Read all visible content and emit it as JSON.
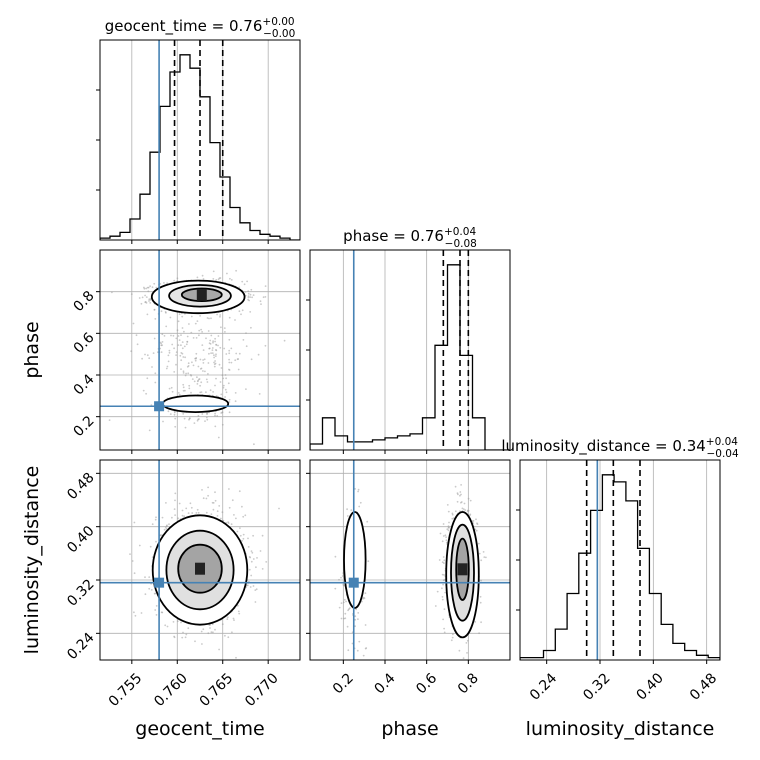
{
  "chart_data": {
    "type": "corner",
    "parameters": [
      "geocent_time",
      "phase",
      "luminosity_distance"
    ],
    "titles": [
      {
        "name": "geocent_time",
        "eq": " = 0.76",
        "plus": "+0.00",
        "minus": "−0.00"
      },
      {
        "name": "phase",
        "eq": " = 0.76",
        "plus": "+0.04",
        "minus": "−0.08"
      },
      {
        "name": "luminosity_distance",
        "eq": " = 0.34",
        "plus": "+0.04",
        "minus": "−0.04"
      }
    ],
    "ranges": {
      "geocent_time": [
        0.7515,
        0.7735
      ],
      "phase": [
        0.04,
        1.0
      ],
      "luminosity_distance": [
        0.2,
        0.5
      ]
    },
    "ticks": {
      "geocent_time": {
        "values": [
          0.755,
          0.76,
          0.765,
          0.77
        ],
        "labels": [
          "0.755",
          "0.760",
          "0.765",
          "0.770"
        ]
      },
      "phase": {
        "values": [
          0.2,
          0.4,
          0.6,
          0.8
        ],
        "labels": [
          "0.2",
          "0.4",
          "0.6",
          "0.8"
        ]
      },
      "luminosity_distance": {
        "values": [
          0.24,
          0.32,
          0.4,
          0.48
        ],
        "labels": [
          "0.24",
          "0.32",
          "0.40",
          "0.48"
        ]
      }
    },
    "truths": {
      "geocent_time": 0.758,
      "phase": 0.25,
      "luminosity_distance": 0.316
    },
    "quantiles": {
      "geocent_time": [
        0.7597,
        0.7625,
        0.765
      ],
      "phase": [
        0.68,
        0.76,
        0.8
      ],
      "luminosity_distance": [
        0.3,
        0.34,
        0.38
      ]
    },
    "histograms": {
      "geocent_time": {
        "edges": [
          0.7515,
          0.7735
        ],
        "counts": [
          1,
          2,
          4,
          11,
          24,
          46,
          70,
          88,
          97,
          90,
          75,
          51,
          33,
          17,
          9,
          5,
          3,
          2,
          1,
          0
        ]
      },
      "phase": {
        "edges": [
          0.04,
          1.0
        ],
        "counts": [
          3,
          16,
          7,
          4,
          4,
          5,
          6,
          7,
          8,
          16,
          52,
          92,
          47,
          16,
          0,
          0
        ]
      },
      "luminosity_distance": {
        "edges": [
          0.2,
          0.5
        ],
        "counts": [
          1,
          1,
          4,
          13,
          28,
          45,
          63,
          78,
          75,
          67,
          47,
          28,
          15,
          7,
          4,
          2,
          1
        ]
      }
    },
    "clusters": {
      "geocent_time_phase": [
        {
          "x": 0.7625,
          "y": 0.78,
          "sx": 0.0024,
          "sy": 0.035,
          "w": 0.72
        },
        {
          "x": 0.7625,
          "y": 0.26,
          "sx": 0.002,
          "sy": 0.035,
          "w": 0.1
        },
        {
          "x": 0.7622,
          "y": 0.5,
          "sx": 0.003,
          "sy": 0.15,
          "w": 0.18
        }
      ],
      "geocent_time_luminosity_distance": [
        {
          "x": 0.7625,
          "y": 0.34,
          "sx": 0.0024,
          "sy": 0.04,
          "w": 1.0
        }
      ],
      "phase_luminosity_distance": [
        {
          "x": 0.77,
          "y": 0.34,
          "sx": 0.035,
          "sy": 0.04,
          "w": 0.85
        },
        {
          "x": 0.25,
          "y": 0.34,
          "sx": 0.03,
          "sy": 0.045,
          "w": 0.15
        }
      ]
    },
    "contours": {
      "geocent_time_phase": [
        {
          "cx": 0.7623,
          "cy": 0.775,
          "rx": 0.0051,
          "ry": 0.078,
          "fill": "#ffffff"
        },
        {
          "cx": 0.7625,
          "cy": 0.78,
          "rx": 0.0034,
          "ry": 0.052,
          "fill": "#e4e4e4"
        },
        {
          "cx": 0.7627,
          "cy": 0.785,
          "rx": 0.0022,
          "ry": 0.03,
          "fill": "#a8a8a8"
        },
        {
          "cx": 0.762,
          "cy": 0.262,
          "rx": 0.0036,
          "ry": 0.04,
          "fill": "#ffffff"
        }
      ],
      "geocent_time_luminosity_distance": [
        {
          "cx": 0.7625,
          "cy": 0.335,
          "rx": 0.0052,
          "ry": 0.082,
          "fill": "#ffffff"
        },
        {
          "cx": 0.7625,
          "cy": 0.335,
          "rx": 0.0037,
          "ry": 0.059,
          "fill": "#e0e0e0"
        },
        {
          "cx": 0.7625,
          "cy": 0.337,
          "rx": 0.0024,
          "ry": 0.036,
          "fill": "#a4a4a4"
        }
      ],
      "phase_luminosity_distance": [
        {
          "cx": 0.772,
          "cy": 0.328,
          "rx": 0.078,
          "ry": 0.094,
          "fill": "#ffffff"
        },
        {
          "cx": 0.772,
          "cy": 0.331,
          "rx": 0.055,
          "ry": 0.072,
          "fill": "#e0e0e0"
        },
        {
          "cx": 0.772,
          "cy": 0.336,
          "rx": 0.03,
          "ry": 0.046,
          "fill": "#a4a4a4"
        },
        {
          "cx": 0.255,
          "cy": 0.35,
          "rx": 0.052,
          "ry": 0.072,
          "fill": "#ffffff"
        }
      ]
    },
    "grid": true,
    "colors": {
      "truth": "#4682b4",
      "line": "#000000",
      "grid": "#b0b0b0",
      "points": "#9e9e9e"
    }
  }
}
